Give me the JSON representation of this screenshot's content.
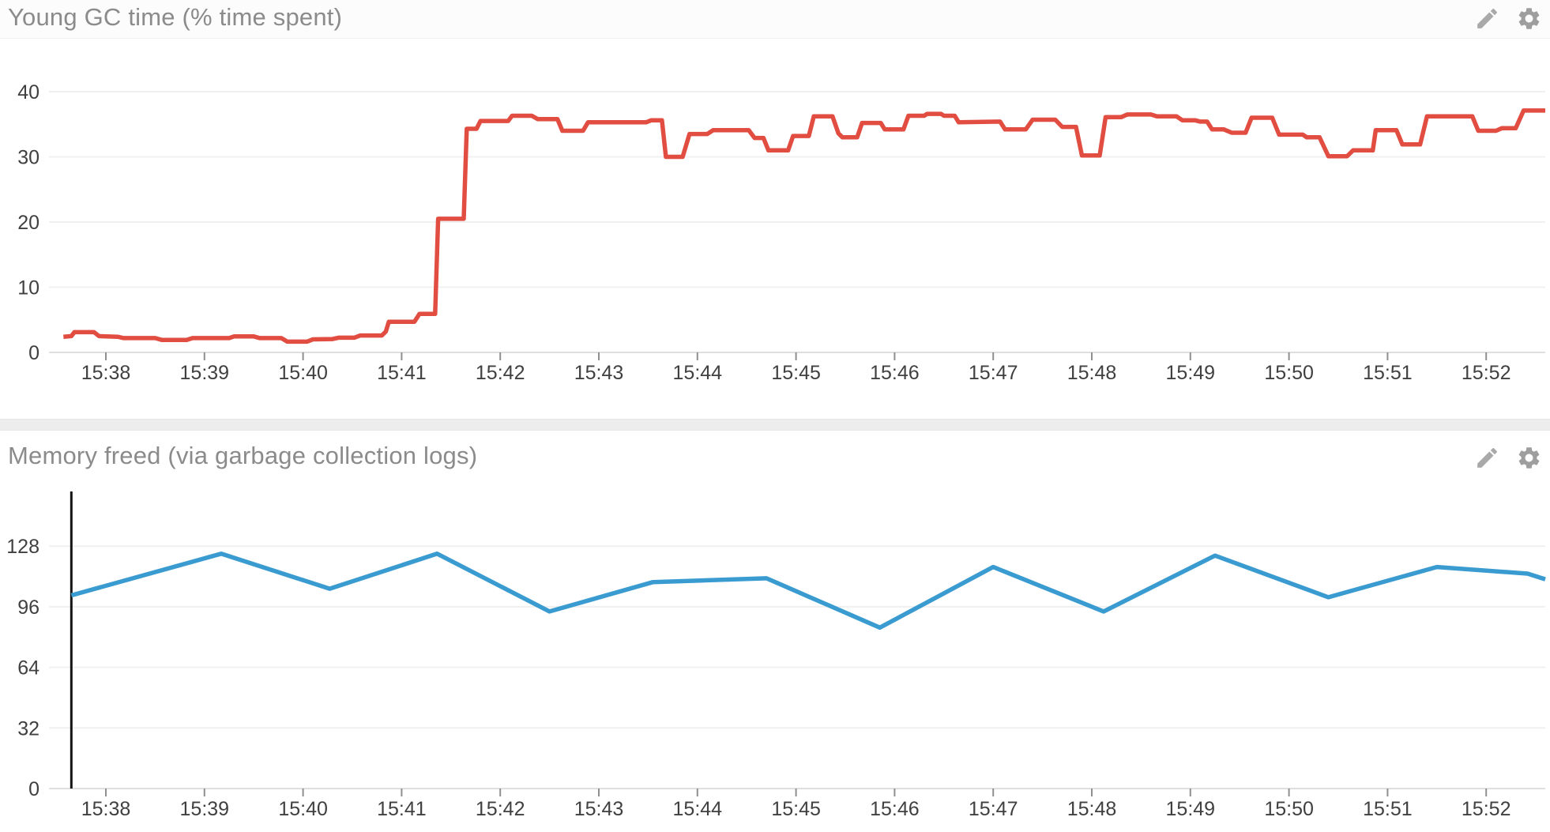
{
  "page": {
    "background": "#ffffff",
    "divider_color": "#ededed",
    "title_color": "#8b8b8b",
    "axis_label_color": "#404040",
    "gridline_color": "#f0f0f0",
    "axis_line_color": "#dfdfdf",
    "tick_color": "#8f8f8f"
  },
  "panels": [
    {
      "title": "Young GC time (% time spent)",
      "header_icons": [
        "pencil-icon",
        "gear-icon"
      ],
      "chart_data": {
        "type": "line",
        "title": "Young GC time (% time spent)",
        "xlabel": "",
        "ylabel": "",
        "legend": "none",
        "grid": true,
        "ylim": [
          0,
          41.2
        ],
        "yticks": [
          0,
          10,
          20,
          30,
          40
        ],
        "x_axis": {
          "labels": [
            "15:38",
            "15:39",
            "15:40",
            "15:41",
            "15:42",
            "15:43",
            "15:44",
            "15:45",
            "15:46",
            "15:47",
            "15:48",
            "15:49",
            "15:50",
            "15:51",
            "15:52"
          ],
          "minutes": [
            1,
            2,
            3,
            4,
            5,
            6,
            7,
            8,
            9,
            10,
            11,
            12,
            13,
            14,
            15
          ]
        },
        "xlim_minutes": [
          0.42,
          15.62
        ],
        "series": [
          {
            "name": "Young GC time %",
            "color": "#e24d42",
            "points": [
              [
                0.57,
                2.4
              ],
              [
                0.65,
                2.5
              ],
              [
                0.68,
                3.1
              ],
              [
                0.88,
                3.1
              ],
              [
                0.93,
                2.5
              ],
              [
                1.12,
                2.4
              ],
              [
                1.18,
                2.2
              ],
              [
                1.5,
                2.2
              ],
              [
                1.57,
                1.9
              ],
              [
                1.82,
                1.9
              ],
              [
                1.88,
                2.2
              ],
              [
                2.25,
                2.2
              ],
              [
                2.3,
                2.45
              ],
              [
                2.5,
                2.45
              ],
              [
                2.56,
                2.2
              ],
              [
                2.78,
                2.2
              ],
              [
                2.84,
                1.65
              ],
              [
                3.04,
                1.65
              ],
              [
                3.1,
                2.0
              ],
              [
                3.3,
                2.05
              ],
              [
                3.36,
                2.25
              ],
              [
                3.52,
                2.25
              ],
              [
                3.58,
                2.6
              ],
              [
                3.8,
                2.6
              ],
              [
                3.84,
                3.2
              ],
              [
                3.87,
                4.7
              ],
              [
                4.13,
                4.7
              ],
              [
                4.18,
                5.9
              ],
              [
                4.34,
                5.9
              ],
              [
                4.37,
                20.5
              ],
              [
                4.63,
                20.5
              ],
              [
                4.66,
                34.3
              ],
              [
                4.76,
                34.3
              ],
              [
                4.8,
                35.5
              ],
              [
                5.08,
                35.5
              ],
              [
                5.12,
                36.3
              ],
              [
                5.32,
                36.3
              ],
              [
                5.38,
                35.8
              ],
              [
                5.58,
                35.8
              ],
              [
                5.63,
                34.0
              ],
              [
                5.84,
                34.0
              ],
              [
                5.89,
                35.3
              ],
              [
                6.48,
                35.3
              ],
              [
                6.53,
                35.6
              ],
              [
                6.64,
                35.6
              ],
              [
                6.68,
                30.0
              ],
              [
                6.85,
                30.0
              ],
              [
                6.92,
                33.5
              ],
              [
                7.1,
                33.5
              ],
              [
                7.16,
                34.1
              ],
              [
                7.52,
                34.1
              ],
              [
                7.58,
                32.9
              ],
              [
                7.67,
                32.9
              ],
              [
                7.72,
                31.0
              ],
              [
                7.92,
                31.0
              ],
              [
                7.97,
                33.2
              ],
              [
                8.13,
                33.2
              ],
              [
                8.18,
                36.2
              ],
              [
                8.37,
                36.2
              ],
              [
                8.43,
                33.6
              ],
              [
                8.47,
                33.0
              ],
              [
                8.62,
                33.0
              ],
              [
                8.67,
                35.2
              ],
              [
                8.86,
                35.2
              ],
              [
                8.9,
                34.2
              ],
              [
                9.09,
                34.2
              ],
              [
                9.14,
                36.3
              ],
              [
                9.3,
                36.3
              ],
              [
                9.33,
                36.6
              ],
              [
                9.47,
                36.6
              ],
              [
                9.5,
                36.3
              ],
              [
                9.61,
                36.3
              ],
              [
                9.65,
                35.3
              ],
              [
                10.07,
                35.4
              ],
              [
                10.12,
                34.2
              ],
              [
                10.33,
                34.2
              ],
              [
                10.4,
                35.7
              ],
              [
                10.63,
                35.7
              ],
              [
                10.7,
                34.6
              ],
              [
                10.84,
                34.6
              ],
              [
                10.9,
                30.2
              ],
              [
                11.08,
                30.2
              ],
              [
                11.14,
                36.1
              ],
              [
                11.3,
                36.1
              ],
              [
                11.36,
                36.5
              ],
              [
                11.6,
                36.5
              ],
              [
                11.66,
                36.2
              ],
              [
                11.86,
                36.2
              ],
              [
                11.92,
                35.6
              ],
              [
                12.05,
                35.6
              ],
              [
                12.1,
                35.4
              ],
              [
                12.17,
                35.4
              ],
              [
                12.22,
                34.2
              ],
              [
                12.34,
                34.2
              ],
              [
                12.42,
                33.7
              ],
              [
                12.56,
                33.7
              ],
              [
                12.62,
                36.0
              ],
              [
                12.83,
                36.0
              ],
              [
                12.9,
                33.4
              ],
              [
                13.14,
                33.4
              ],
              [
                13.18,
                33.0
              ],
              [
                13.31,
                33.0
              ],
              [
                13.4,
                30.1
              ],
              [
                13.59,
                30.1
              ],
              [
                13.65,
                31.0
              ],
              [
                13.85,
                31.0
              ],
              [
                13.88,
                34.1
              ],
              [
                14.09,
                34.1
              ],
              [
                14.15,
                31.9
              ],
              [
                14.33,
                31.9
              ],
              [
                14.4,
                36.2
              ],
              [
                14.86,
                36.2
              ],
              [
                14.92,
                34.0
              ],
              [
                15.1,
                34.0
              ],
              [
                15.16,
                34.4
              ],
              [
                15.3,
                34.4
              ],
              [
                15.38,
                37.1
              ],
              [
                15.6,
                37.1
              ]
            ]
          }
        ]
      }
    },
    {
      "title": "Memory freed (via garbage collection logs)",
      "header_icons": [
        "pencil-icon",
        "gear-icon"
      ],
      "chart_data": {
        "type": "line",
        "title": "Memory freed (via garbage collection logs)",
        "xlabel": "",
        "ylabel": "",
        "legend": "none",
        "grid": true,
        "ylim": [
          0,
          157
        ],
        "yticks": [
          0,
          32,
          64,
          96,
          128
        ],
        "x_axis": {
          "labels": [
            "15:38",
            "15:39",
            "15:40",
            "15:41",
            "15:42",
            "15:43",
            "15:44",
            "15:45",
            "15:46",
            "15:47",
            "15:48",
            "15:49",
            "15:50",
            "15:51",
            "15:52"
          ],
          "minutes": [
            1,
            2,
            3,
            4,
            5,
            6,
            7,
            8,
            9,
            10,
            11,
            12,
            13,
            14,
            15
          ]
        },
        "xlim_minutes": [
          0.42,
          15.62
        ],
        "cursor_line": {
          "minute": 0.65,
          "color": "#141414"
        },
        "series": [
          {
            "name": "Memory freed",
            "color": "#3a9bd1",
            "points": [
              [
                0.65,
                102
              ],
              [
                2.17,
                124
              ],
              [
                3.27,
                105.5
              ],
              [
                4.36,
                124
              ],
              [
                5.5,
                93.5
              ],
              [
                6.55,
                109
              ],
              [
                7.7,
                111
              ],
              [
                8.85,
                85
              ],
              [
                10.0,
                117
              ],
              [
                11.12,
                93.5
              ],
              [
                12.25,
                123
              ],
              [
                13.4,
                101
              ],
              [
                14.5,
                117
              ],
              [
                15.42,
                113.5
              ],
              [
                15.6,
                110.5
              ]
            ]
          }
        ]
      }
    }
  ]
}
